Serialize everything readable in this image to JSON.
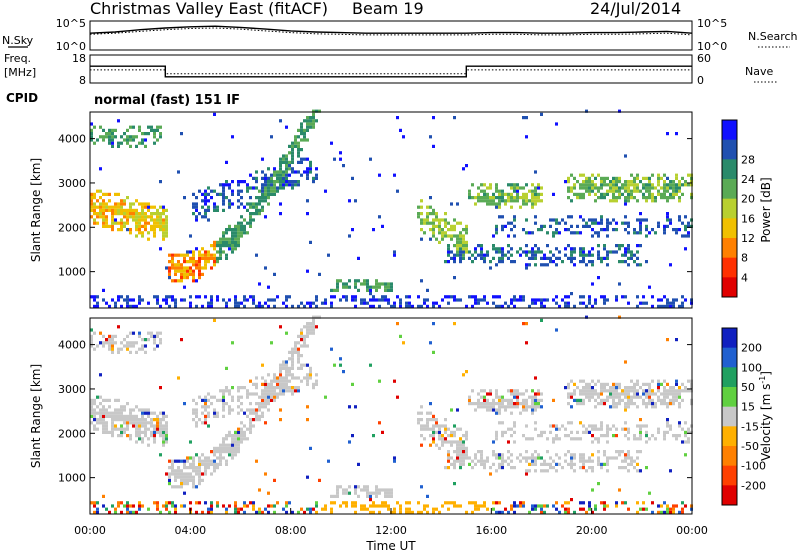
{
  "header": {
    "station": "Christmas Valley East (fitACF)",
    "beam": "Beam 19",
    "date": "24/Jul/2014",
    "cpid_label": "CPID",
    "cpid_value": "normal (fast) 151 IF"
  },
  "chart_data": [
    {
      "type": "line",
      "panel": "noise",
      "left_label": "N.Sky",
      "right_label": "N.Search",
      "yticks_left": [
        "10^5",
        "10^0"
      ],
      "yticks_right": [
        "10^5",
        "10^0"
      ],
      "series": [
        {
          "name": "N.Sky",
          "x": [
            0,
            1,
            2,
            3,
            4,
            5,
            6,
            7,
            8,
            9,
            10,
            11,
            12,
            13,
            14,
            15,
            16,
            17,
            18,
            19,
            20,
            21,
            22,
            23,
            24
          ],
          "log_values": [
            2.9,
            3.1,
            3.5,
            3.8,
            4.0,
            4.1,
            3.9,
            3.6,
            3.3,
            3.1,
            3.0,
            2.9,
            2.9,
            2.9,
            2.9,
            2.9,
            3.0,
            3.0,
            2.9,
            2.9,
            3.0,
            3.0,
            3.1,
            3.2,
            2.9
          ]
        },
        {
          "name": "N.Search",
          "x": [
            0,
            1,
            2,
            3,
            4,
            5,
            6,
            7,
            8,
            9,
            10,
            11,
            12,
            13,
            14,
            15,
            16,
            17,
            18,
            19,
            20,
            21,
            22,
            23,
            24
          ],
          "log_values": [
            2.7,
            2.9,
            3.2,
            3.5,
            3.7,
            3.8,
            3.6,
            3.3,
            3.0,
            2.8,
            2.7,
            2.6,
            2.6,
            2.6,
            2.6,
            2.6,
            2.7,
            2.7,
            2.6,
            2.6,
            2.7,
            2.7,
            2.8,
            2.9,
            2.6
          ]
        }
      ]
    },
    {
      "type": "line",
      "panel": "frequency",
      "left_label_1": "Freq.",
      "left_label_2": "[MHz]",
      "right_label": "Nave",
      "yticks_left": [
        "18",
        "8"
      ],
      "yticks_right": [
        "60",
        "0"
      ],
      "ylim_left": [
        8,
        18
      ],
      "ylim_right": [
        0,
        60
      ],
      "series": [
        {
          "name": "Freq.",
          "x": [
            0,
            3,
            3,
            15,
            15,
            24
          ],
          "values": [
            14.0,
            14.0,
            10.2,
            10.2,
            14.0,
            14.0
          ]
        },
        {
          "name": "Nave",
          "x": [
            0,
            3,
            3,
            15,
            15,
            24
          ],
          "values": [
            28,
            28,
            20,
            20,
            28,
            28
          ]
        }
      ]
    },
    {
      "type": "heatmap",
      "panel": "power",
      "ylabel": "Slant Range [km]",
      "xlim": [
        0,
        24
      ],
      "ylim": [
        180,
        4600
      ],
      "yticks": [
        1000,
        2000,
        3000,
        4000
      ],
      "colorbar_label": "Power [dB]",
      "colorbar_ticks": [
        4,
        8,
        12,
        16,
        20,
        24,
        28
      ],
      "colorbar_colors": [
        "#1010ff",
        "#2050b0",
        "#2a8a6a",
        "#5aaa55",
        "#b8d030",
        "#f0c000",
        "#ff8000",
        "#ff3000",
        "#e00000"
      ]
    },
    {
      "type": "heatmap",
      "panel": "velocity",
      "ylabel": "Slant Range [km]",
      "xlabel": "Time UT",
      "xlim": [
        0,
        24
      ],
      "ylim": [
        180,
        4600
      ],
      "yticks": [
        1000,
        2000,
        3000,
        4000
      ],
      "xticks": [
        "00:00",
        "04:00",
        "08:00",
        "12:00",
        "16:00",
        "20:00",
        "00:00"
      ],
      "colorbar_label": "Velocity [m s",
      "colorbar_label_sup": "-1",
      "colorbar_label_end": "]",
      "colorbar_ticks": [
        200,
        100,
        50,
        15,
        -15,
        -50,
        -100,
        -200
      ],
      "colorbar_colors": [
        "#1020c0",
        "#2060d0",
        "#20a060",
        "#60d040",
        "#c8c8c8",
        "#ffb000",
        "#ff8000",
        "#ff4000",
        "#e00000"
      ]
    }
  ]
}
